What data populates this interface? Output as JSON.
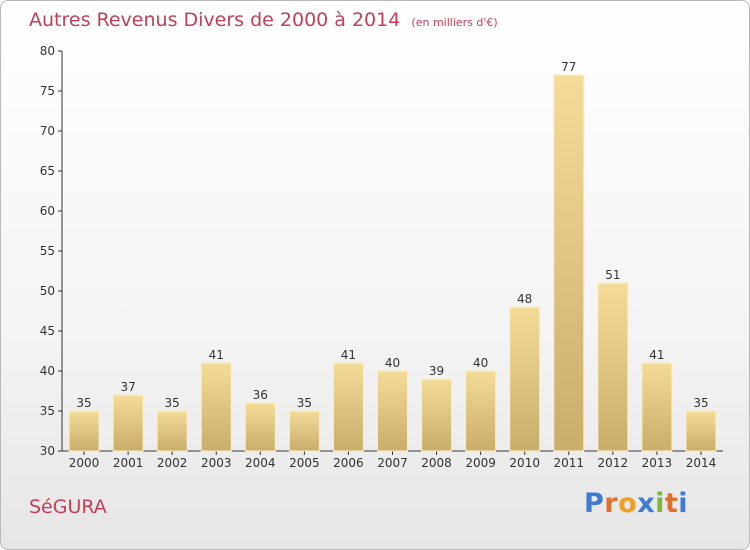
{
  "header": {
    "title": "Autres Revenus Divers de 2000 à 2014",
    "subtitle": "(en milliers d'€)"
  },
  "footer": {
    "commune": "SéGURA",
    "brand": "Proxiti"
  },
  "colors": {
    "title": "#c0405a",
    "bar_light": "#f4dc98",
    "bar_dark": "#c9ad6a",
    "axis": "#333333",
    "gridline": "#dddddd",
    "brand_letters": [
      "#3e7bd1",
      "#e0702a",
      "#f0a020",
      "#3e7bd1",
      "#7db83a",
      "#e0702a",
      "#3e7bd1"
    ]
  },
  "chart_data": {
    "type": "bar",
    "title": "Autres Revenus Divers de 2000 à 2014",
    "subtitle": "(en milliers d'€)",
    "categories": [
      "2000",
      "2001",
      "2002",
      "2003",
      "2004",
      "2005",
      "2006",
      "2007",
      "2008",
      "2009",
      "2010",
      "2011",
      "2012",
      "2013",
      "2014"
    ],
    "values": [
      35,
      37,
      35,
      41,
      36,
      35,
      41,
      40,
      39,
      40,
      48,
      77,
      51,
      41,
      35
    ],
    "ylim": [
      30,
      80
    ],
    "yticks": [
      30,
      35,
      40,
      45,
      50,
      55,
      60,
      65,
      70,
      75,
      80
    ],
    "xlabel": "",
    "ylabel": "",
    "grid": false,
    "data_labels": true
  }
}
